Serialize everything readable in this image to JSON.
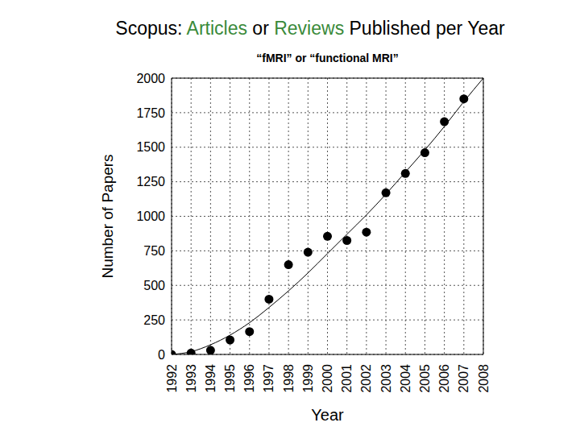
{
  "chart_data": {
    "type": "scatter",
    "title": [
      {
        "text": "Scopus: ",
        "color": "#000000"
      },
      {
        "text": "Articles",
        "color": "#3a8a3a"
      },
      {
        "text": " or ",
        "color": "#000000"
      },
      {
        "text": "Reviews",
        "color": "#3a8a3a"
      },
      {
        "text": " Published per Year",
        "color": "#000000"
      }
    ],
    "subtitle": "“fMRI” or “functional MRI”",
    "x_label": "Year",
    "y_label": "Number of Papers",
    "x": [
      1992,
      1993,
      1994,
      1995,
      1996,
      1997,
      1998,
      1999,
      2000,
      2001,
      2002,
      2003,
      2004,
      2005,
      2006,
      2007,
      2008
    ],
    "series": [
      {
        "type": "scatter",
        "marker": "circle",
        "color": "#000000",
        "values": [
          0,
          10,
          30,
          105,
          165,
          400,
          650,
          740,
          855,
          825,
          885,
          1170,
          1310,
          1460,
          1685,
          1850,
          null
        ]
      },
      {
        "type": "line",
        "line_style": "solid",
        "color": "#000000",
        "values": [
          0,
          20,
          70,
          140,
          230,
          340,
          460,
          590,
          730,
          870,
          1010,
          1160,
          1320,
          1480,
          1650,
          1830,
          2000
        ]
      }
    ],
    "xlim": [
      1992,
      2008
    ],
    "xticks": [
      1992,
      1993,
      1994,
      1995,
      1996,
      1997,
      1998,
      1999,
      2000,
      2001,
      2002,
      2003,
      2004,
      2005,
      2006,
      2007,
      2008
    ],
    "ylim": [
      0,
      2000
    ],
    "yticks": [
      0,
      250,
      500,
      750,
      1000,
      1250,
      1500,
      1750,
      2000
    ],
    "grid": true
  }
}
